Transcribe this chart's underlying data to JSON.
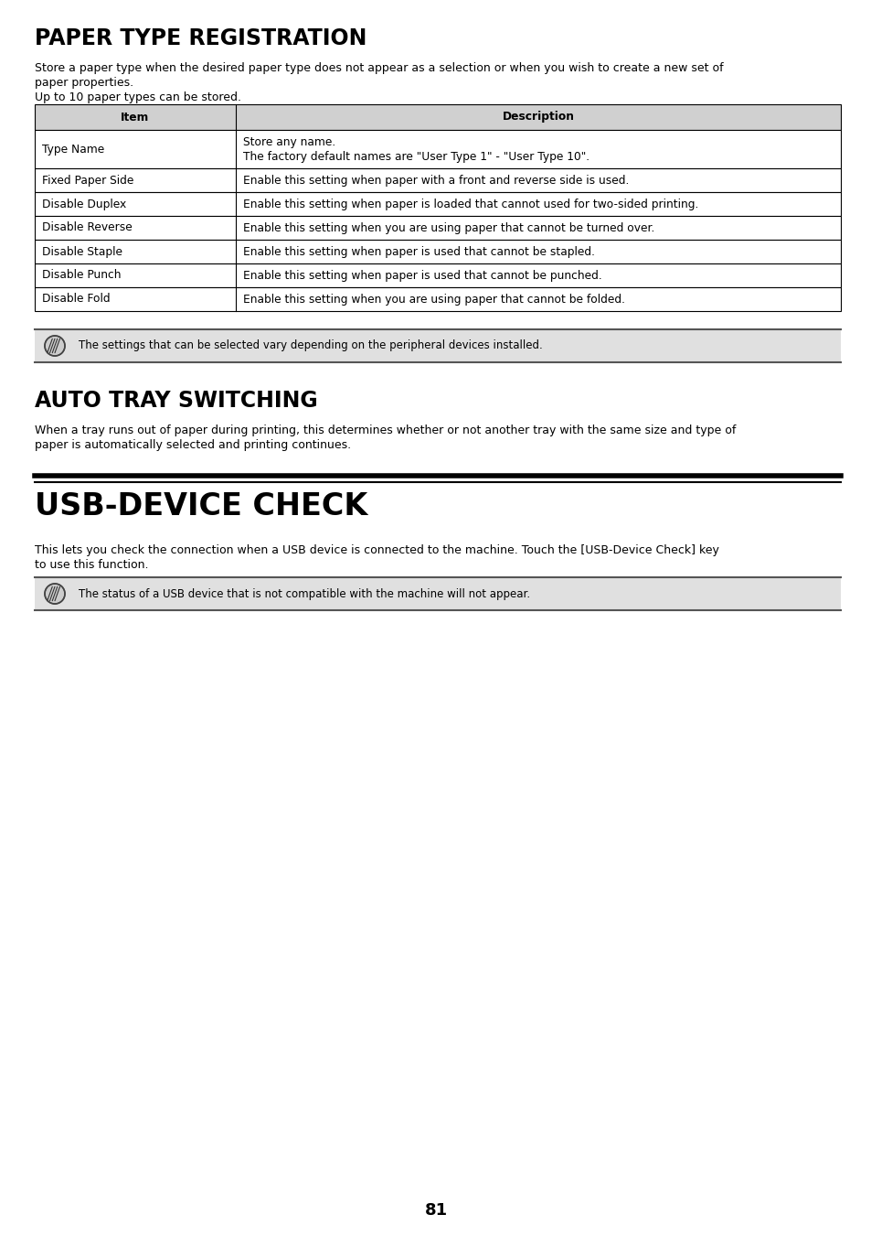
{
  "bg_color": "#ffffff",
  "page_number": "81",
  "section1_title": "PAPER TYPE REGISTRATION",
  "section1_intro_line1": "Store a paper type when the desired paper type does not appear as a selection or when you wish to create a new set of",
  "section1_intro_line2": "paper properties.",
  "section1_intro_line3": "Up to 10 paper types can be stored.",
  "table_header": [
    "Item",
    "Description"
  ],
  "table_rows": [
    [
      "Type Name",
      "Store any name.\nThe factory default names are \"User Type 1\" - \"User Type 10\"."
    ],
    [
      "Fixed Paper Side",
      "Enable this setting when paper with a front and reverse side is used."
    ],
    [
      "Disable Duplex",
      "Enable this setting when paper is loaded that cannot used for two-sided printing."
    ],
    [
      "Disable Reverse",
      "Enable this setting when you are using paper that cannot be turned over."
    ],
    [
      "Disable Staple",
      "Enable this setting when paper is used that cannot be stapled."
    ],
    [
      "Disable Punch",
      "Enable this setting when paper is used that cannot be punched."
    ],
    [
      "Disable Fold",
      "Enable this setting when you are using paper that cannot be folded."
    ]
  ],
  "note1_text": "The settings that can be selected vary depending on the peripheral devices installed.",
  "section2_title": "AUTO TRAY SWITCHING",
  "section2_body_line1": "When a tray runs out of paper during printing, this determines whether or not another tray with the same size and type of",
  "section2_body_line2": "paper is automatically selected and printing continues.",
  "section3_title": "USB-DEVICE CHECK",
  "section3_body_line1": "This lets you check the connection when a USB device is connected to the machine. Touch the [USB-Device Check] key",
  "section3_body_line2": "to use this function.",
  "note2_text": "The status of a USB device that is not compatible with the machine will not appear.",
  "header_bg": "#d0d0d0",
  "note_bg": "#e0e0e0",
  "table_border": "#000000",
  "text_color": "#000000",
  "title1_fontsize": 17,
  "title2_fontsize": 17,
  "title3_fontsize": 24,
  "body_fontsize": 9.0,
  "table_fontsize": 8.8,
  "note_fontsize": 8.5
}
